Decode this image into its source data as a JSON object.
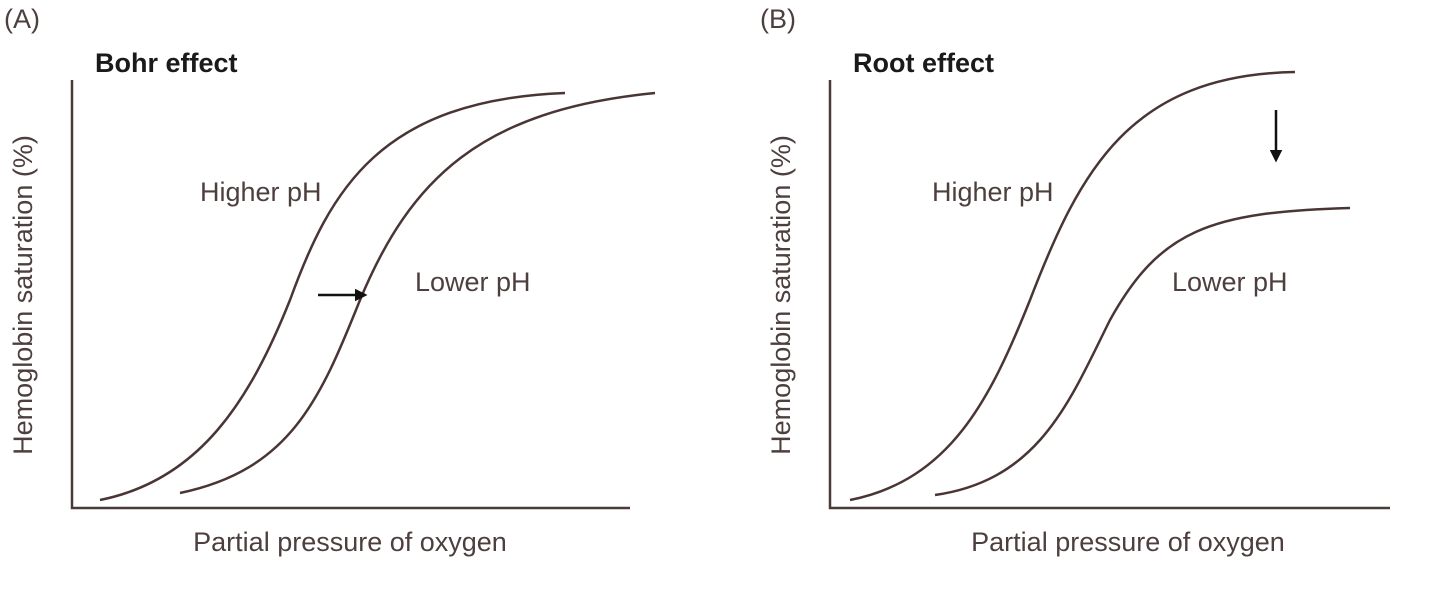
{
  "panels": [
    {
      "label": "(A)",
      "title": "Bohr effect",
      "y_label": "Hemoglobin saturation (%)",
      "x_label": "Partial pressure of oxygen",
      "curve_labels": [
        "Higher pH",
        "Lower pH"
      ]
    },
    {
      "label": "(B)",
      "title": "Root effect",
      "y_label": "Hemoglobin saturation (%)",
      "x_label": "Partial pressure of oxygen",
      "curve_labels": [
        "Higher pH",
        "Lower pH"
      ]
    }
  ]
}
